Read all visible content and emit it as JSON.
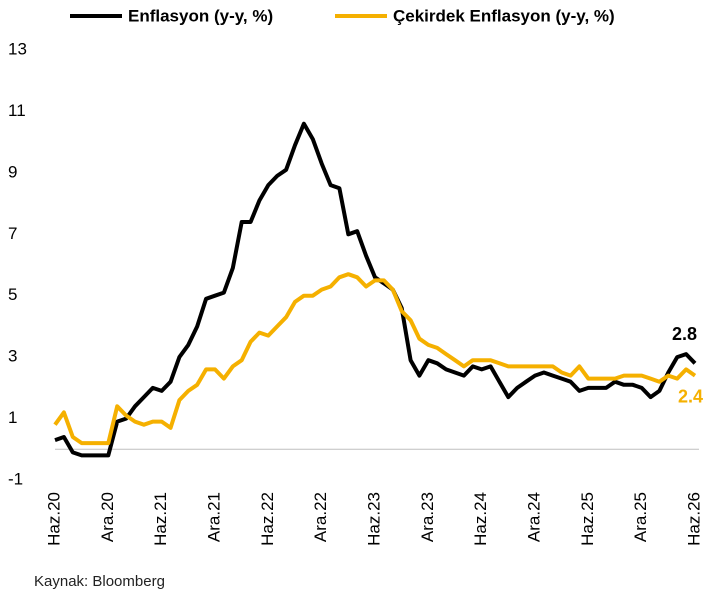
{
  "chart_data": {
    "type": "line",
    "source": "Kaynak: Bloomberg",
    "categories": [
      "Haz.20",
      null,
      null,
      null,
      null,
      null,
      "Ara.20",
      null,
      null,
      null,
      null,
      null,
      "Haz.21",
      null,
      null,
      null,
      null,
      null,
      "Ara.21",
      null,
      null,
      null,
      null,
      null,
      "Haz.22",
      null,
      null,
      null,
      null,
      null,
      "Ara.22",
      null,
      null,
      null,
      null,
      null,
      "Haz.23",
      null,
      null,
      null,
      null,
      null,
      "Ara.23",
      null,
      null,
      null,
      null,
      null,
      "Haz.24",
      null,
      null,
      null,
      null,
      null,
      "Ara.24",
      null,
      null,
      null,
      null,
      null,
      "Haz.25",
      null,
      null,
      null,
      null,
      null,
      "Ara.25",
      null,
      null,
      null,
      null,
      null,
      "Haz.26"
    ],
    "series": [
      {
        "name": "Enflasyon (y-y, %)",
        "color": "#000000",
        "values": [
          0.3,
          0.4,
          -0.1,
          -0.2,
          -0.2,
          -0.2,
          -0.2,
          0.9,
          1.0,
          1.4,
          1.7,
          2.0,
          1.9,
          2.2,
          3.0,
          3.4,
          4.0,
          4.9,
          5.0,
          5.1,
          5.9,
          7.4,
          7.4,
          8.1,
          8.6,
          8.9,
          9.1,
          9.9,
          10.6,
          10.1,
          9.3,
          8.6,
          8.5,
          7.0,
          7.1,
          6.3,
          5.6,
          5.4,
          5.2,
          4.6,
          2.9,
          2.4,
          2.9,
          2.8,
          2.6,
          2.5,
          2.4,
          2.7,
          2.6,
          2.7,
          2.2,
          1.7,
          2.0,
          2.2,
          2.4,
          2.5,
          2.4,
          2.3,
          2.2,
          1.9,
          2.0,
          2.0,
          2.0,
          2.2,
          2.1,
          2.1,
          2.0,
          1.7,
          1.9,
          2.5,
          3.0,
          3.1,
          2.8
        ]
      },
      {
        "name": "Çekirdek Enflasyon (y-y, %)",
        "color": "#f5b000",
        "values": [
          0.8,
          1.2,
          0.4,
          0.2,
          0.2,
          0.2,
          0.2,
          1.4,
          1.1,
          0.9,
          0.8,
          0.9,
          0.9,
          0.7,
          1.6,
          1.9,
          2.1,
          2.6,
          2.6,
          2.3,
          2.7,
          2.9,
          3.5,
          3.8,
          3.7,
          4.0,
          4.3,
          4.8,
          5.0,
          5.0,
          5.2,
          5.3,
          5.6,
          5.7,
          5.6,
          5.3,
          5.5,
          5.5,
          5.2,
          4.5,
          4.2,
          3.6,
          3.4,
          3.3,
          3.1,
          2.9,
          2.7,
          2.9,
          2.9,
          2.9,
          2.8,
          2.7,
          2.7,
          2.7,
          2.7,
          2.7,
          2.7,
          2.5,
          2.4,
          2.7,
          2.3,
          2.3,
          2.3,
          2.3,
          2.4,
          2.4,
          2.4,
          2.3,
          2.2,
          2.4,
          2.3,
          2.6,
          2.4
        ]
      }
    ],
    "ylim": [
      -1,
      13
    ],
    "yticks": [
      -1,
      1,
      3,
      5,
      7,
      9,
      11,
      13
    ]
  }
}
